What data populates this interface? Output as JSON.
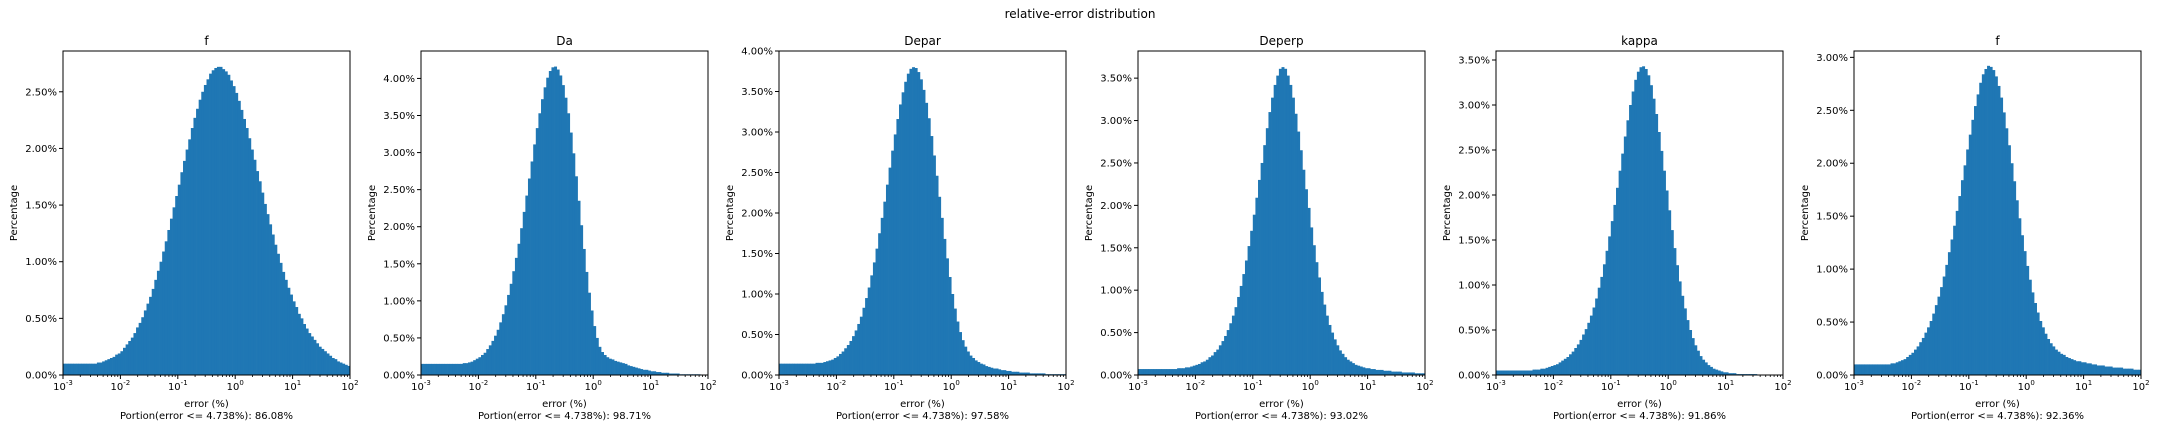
{
  "figure": {
    "suptitle": "relative-error distribution"
  },
  "chart_data": [
    {
      "type": "bar",
      "title": "f",
      "xlabel": "error (%)",
      "ylabel": "Percentage",
      "caption": "Portion(error <= 4.738%): 86.08%",
      "xscale": "log",
      "xlim": [
        0.001,
        100
      ],
      "ylim": [
        0,
        2.86
      ],
      "yticks": [
        "0.00%",
        "0.50%",
        "1.00%",
        "1.50%",
        "2.00%",
        "2.50%"
      ],
      "yticks_values": [
        0,
        0.5,
        1.0,
        1.5,
        2.0,
        2.5
      ],
      "xticks": [
        {
          "base": "10",
          "exp": "-3"
        },
        {
          "base": "10",
          "exp": "-2"
        },
        {
          "base": "10",
          "exp": "-1"
        },
        {
          "base": "10",
          "exp": "0"
        },
        {
          "base": "10",
          "exp": "1"
        },
        {
          "base": "10",
          "exp": "2"
        }
      ],
      "xticks_values": [
        0.001,
        0.01,
        0.1,
        1,
        10,
        100
      ],
      "color": "#1f77b4",
      "peak_x": 0.9,
      "peak_y": 2.72,
      "values": [
        0.1,
        0.1,
        0.1,
        0.1,
        0.1,
        0.1,
        0.1,
        0.1,
        0.1,
        0.1,
        0.1,
        0.1,
        0.1,
        0.11,
        0.11,
        0.12,
        0.13,
        0.14,
        0.15,
        0.16,
        0.18,
        0.19,
        0.21,
        0.24,
        0.27,
        0.3,
        0.33,
        0.37,
        0.42,
        0.46,
        0.51,
        0.57,
        0.63,
        0.69,
        0.76,
        0.84,
        0.92,
        1.0,
        1.09,
        1.18,
        1.28,
        1.38,
        1.48,
        1.58,
        1.68,
        1.79,
        1.89,
        1.99,
        2.08,
        2.18,
        2.27,
        2.35,
        2.43,
        2.5,
        2.56,
        2.61,
        2.66,
        2.69,
        2.71,
        2.72,
        2.72,
        2.7,
        2.68,
        2.65,
        2.6,
        2.55,
        2.49,
        2.42,
        2.34,
        2.26,
        2.18,
        2.09,
        1.99,
        1.9,
        1.8,
        1.71,
        1.61,
        1.51,
        1.42,
        1.33,
        1.24,
        1.15,
        1.07,
        0.99,
        0.91,
        0.84,
        0.77,
        0.71,
        0.65,
        0.6,
        0.54,
        0.5,
        0.45,
        0.41,
        0.37,
        0.34,
        0.31,
        0.28,
        0.25,
        0.23,
        0.21,
        0.19,
        0.17,
        0.15,
        0.14,
        0.12,
        0.11,
        0.1,
        0.09,
        0.08
      ]
    },
    {
      "type": "bar",
      "title": "Da",
      "xlabel": "error (%)",
      "ylabel": "Percentage",
      "caption": "Portion(error <= 4.738%): 98.71%",
      "xscale": "log",
      "xlim": [
        0.001,
        100
      ],
      "ylim": [
        0,
        4.37
      ],
      "yticks": [
        "0.00%",
        "0.50%",
        "1.00%",
        "1.50%",
        "2.00%",
        "2.50%",
        "3.00%",
        "3.50%",
        "4.00%"
      ],
      "yticks_values": [
        0,
        0.5,
        1.0,
        1.5,
        2.0,
        2.5,
        3.0,
        3.5,
        4.0
      ],
      "xticks": [
        {
          "base": "10",
          "exp": "-3"
        },
        {
          "base": "10",
          "exp": "-2"
        },
        {
          "base": "10",
          "exp": "-1"
        },
        {
          "base": "10",
          "exp": "0"
        },
        {
          "base": "10",
          "exp": "1"
        },
        {
          "base": "10",
          "exp": "2"
        }
      ],
      "xticks_values": [
        0.001,
        0.01,
        0.1,
        1,
        10,
        100
      ],
      "color": "#1f77b4",
      "peak_x": 0.4,
      "peak_y": 4.16,
      "values": [
        0.15,
        0.15,
        0.15,
        0.15,
        0.15,
        0.15,
        0.15,
        0.15,
        0.15,
        0.15,
        0.15,
        0.15,
        0.15,
        0.15,
        0.15,
        0.15,
        0.16,
        0.16,
        0.17,
        0.18,
        0.2,
        0.22,
        0.24,
        0.27,
        0.3,
        0.35,
        0.4,
        0.46,
        0.53,
        0.61,
        0.71,
        0.82,
        0.94,
        1.08,
        1.23,
        1.4,
        1.58,
        1.77,
        1.98,
        2.2,
        2.42,
        2.65,
        2.88,
        3.11,
        3.33,
        3.53,
        3.72,
        3.88,
        4.01,
        4.1,
        4.15,
        4.16,
        4.12,
        4.04,
        3.91,
        3.74,
        3.53,
        3.27,
        2.99,
        2.68,
        2.35,
        2.02,
        1.7,
        1.39,
        1.11,
        0.87,
        0.66,
        0.5,
        0.38,
        0.31,
        0.27,
        0.24,
        0.22,
        0.21,
        0.19,
        0.18,
        0.17,
        0.16,
        0.15,
        0.13,
        0.12,
        0.11,
        0.1,
        0.09,
        0.08,
        0.07,
        0.07,
        0.06,
        0.05,
        0.05,
        0.04,
        0.04,
        0.03,
        0.03,
        0.03,
        0.02,
        0.02,
        0.02,
        0.02,
        0.01,
        0.01,
        0.01,
        0.01,
        0.01,
        0.01,
        0.01,
        0.01,
        0,
        0,
        0
      ]
    },
    {
      "type": "bar",
      "title": "Depar",
      "xlabel": "error (%)",
      "ylabel": "Percentage",
      "caption": "Portion(error <= 4.738%): 97.58%",
      "xscale": "log",
      "xlim": [
        0.001,
        100
      ],
      "ylim": [
        0,
        4.0
      ],
      "yticks": [
        "0.00%",
        "0.50%",
        "1.00%",
        "1.50%",
        "2.00%",
        "2.50%",
        "3.00%",
        "3.50%",
        "4.00%"
      ],
      "yticks_values": [
        0,
        0.5,
        1.0,
        1.5,
        2.0,
        2.5,
        3.0,
        3.5,
        4.0
      ],
      "xticks": [
        {
          "base": "10",
          "exp": "-3"
        },
        {
          "base": "10",
          "exp": "-2"
        },
        {
          "base": "10",
          "exp": "-1"
        },
        {
          "base": "10",
          "exp": "0"
        },
        {
          "base": "10",
          "exp": "1"
        },
        {
          "base": "10",
          "exp": "2"
        }
      ],
      "xticks_values": [
        0.001,
        0.01,
        0.1,
        1,
        10,
        100
      ],
      "color": "#1f77b4",
      "peak_x": 0.45,
      "peak_y": 3.8,
      "values": [
        0.14,
        0.14,
        0.14,
        0.14,
        0.14,
        0.14,
        0.14,
        0.14,
        0.14,
        0.14,
        0.14,
        0.14,
        0.14,
        0.14,
        0.15,
        0.15,
        0.15,
        0.16,
        0.17,
        0.18,
        0.19,
        0.21,
        0.23,
        0.26,
        0.29,
        0.33,
        0.37,
        0.42,
        0.48,
        0.55,
        0.63,
        0.72,
        0.83,
        0.95,
        1.08,
        1.23,
        1.39,
        1.56,
        1.75,
        1.94,
        2.14,
        2.35,
        2.56,
        2.77,
        2.97,
        3.16,
        3.34,
        3.49,
        3.62,
        3.72,
        3.78,
        3.8,
        3.79,
        3.74,
        3.65,
        3.52,
        3.36,
        3.17,
        2.95,
        2.71,
        2.46,
        2.2,
        1.94,
        1.68,
        1.44,
        1.21,
        1.0,
        0.82,
        0.66,
        0.53,
        0.43,
        0.35,
        0.29,
        0.24,
        0.21,
        0.18,
        0.16,
        0.14,
        0.13,
        0.11,
        0.1,
        0.09,
        0.08,
        0.08,
        0.07,
        0.06,
        0.06,
        0.05,
        0.05,
        0.04,
        0.04,
        0.04,
        0.03,
        0.03,
        0.03,
        0.03,
        0.02,
        0.02,
        0.02,
        0.02,
        0.02,
        0.02,
        0.01,
        0.01,
        0.01,
        0.01,
        0.01,
        0.01,
        0.01,
        0.01
      ]
    },
    {
      "type": "bar",
      "title": "Deperp",
      "xlabel": "error (%)",
      "ylabel": "Percentage",
      "caption": "Portion(error <= 4.738%): 93.02%",
      "xscale": "log",
      "xlim": [
        0.001,
        100
      ],
      "ylim": [
        0,
        3.82
      ],
      "yticks": [
        "0.00%",
        "0.50%",
        "1.00%",
        "1.50%",
        "2.00%",
        "2.50%",
        "3.00%",
        "3.50%"
      ],
      "yticks_values": [
        0,
        0.5,
        1.0,
        1.5,
        2.0,
        2.5,
        3.0,
        3.5
      ],
      "xticks": [
        {
          "base": "10",
          "exp": "-3"
        },
        {
          "base": "10",
          "exp": "-2"
        },
        {
          "base": "10",
          "exp": "-1"
        },
        {
          "base": "10",
          "exp": "0"
        },
        {
          "base": "10",
          "exp": "1"
        },
        {
          "base": "10",
          "exp": "2"
        }
      ],
      "xticks_values": [
        0.001,
        0.01,
        0.1,
        1,
        10,
        100
      ],
      "color": "#1f77b4",
      "peak_x": 1.0,
      "peak_y": 3.63,
      "values": [
        0.07,
        0.07,
        0.07,
        0.07,
        0.07,
        0.07,
        0.07,
        0.07,
        0.07,
        0.07,
        0.07,
        0.07,
        0.07,
        0.07,
        0.07,
        0.08,
        0.08,
        0.08,
        0.09,
        0.09,
        0.1,
        0.11,
        0.12,
        0.13,
        0.15,
        0.16,
        0.18,
        0.21,
        0.23,
        0.27,
        0.3,
        0.35,
        0.4,
        0.46,
        0.53,
        0.61,
        0.7,
        0.8,
        0.92,
        1.05,
        1.19,
        1.35,
        1.52,
        1.7,
        1.89,
        2.09,
        2.3,
        2.5,
        2.71,
        2.91,
        3.1,
        3.27,
        3.42,
        3.53,
        3.61,
        3.63,
        3.61,
        3.53,
        3.42,
        3.27,
        3.08,
        2.87,
        2.65,
        2.42,
        2.19,
        1.97,
        1.74,
        1.53,
        1.33,
        1.15,
        0.98,
        0.83,
        0.7,
        0.59,
        0.5,
        0.42,
        0.35,
        0.29,
        0.25,
        0.21,
        0.18,
        0.16,
        0.14,
        0.12,
        0.11,
        0.1,
        0.09,
        0.08,
        0.08,
        0.07,
        0.07,
        0.06,
        0.06,
        0.06,
        0.05,
        0.05,
        0.05,
        0.04,
        0.04,
        0.04,
        0.04,
        0.03,
        0.03,
        0.03,
        0.03,
        0.03,
        0.02,
        0.02,
        0.02,
        0.02
      ]
    },
    {
      "type": "bar",
      "title": "kappa",
      "xlabel": "error (%)",
      "ylabel": "Percentage",
      "caption": "Portion(error <= 4.738%): 91.86%",
      "xscale": "log",
      "xlim": [
        0.001,
        100
      ],
      "ylim": [
        0,
        3.6
      ],
      "yticks": [
        "0.00%",
        "0.50%",
        "1.00%",
        "1.50%",
        "2.00%",
        "2.50%",
        "3.00%",
        "3.50%"
      ],
      "yticks_values": [
        0,
        0.5,
        1.0,
        1.5,
        2.0,
        2.5,
        3.0,
        3.5
      ],
      "xticks": [
        {
          "base": "10",
          "exp": "-3"
        },
        {
          "base": "10",
          "exp": "-2"
        },
        {
          "base": "10",
          "exp": "-1"
        },
        {
          "base": "10",
          "exp": "0"
        },
        {
          "base": "10",
          "exp": "1"
        },
        {
          "base": "10",
          "exp": "2"
        }
      ],
      "xticks_values": [
        0.001,
        0.01,
        0.1,
        1,
        10,
        100
      ],
      "color": "#1f77b4",
      "peak_x": 1.1,
      "peak_y": 3.43,
      "values": [
        0.05,
        0.05,
        0.05,
        0.05,
        0.05,
        0.05,
        0.05,
        0.05,
        0.05,
        0.05,
        0.05,
        0.05,
        0.05,
        0.05,
        0.06,
        0.06,
        0.06,
        0.07,
        0.07,
        0.08,
        0.09,
        0.1,
        0.11,
        0.12,
        0.14,
        0.16,
        0.18,
        0.2,
        0.23,
        0.26,
        0.3,
        0.34,
        0.39,
        0.45,
        0.51,
        0.58,
        0.66,
        0.75,
        0.85,
        0.97,
        1.09,
        1.23,
        1.38,
        1.54,
        1.71,
        1.89,
        2.08,
        2.27,
        2.46,
        2.65,
        2.83,
        3.0,
        3.15,
        3.28,
        3.37,
        3.42,
        3.43,
        3.4,
        3.33,
        3.22,
        3.07,
        2.9,
        2.7,
        2.49,
        2.27,
        2.05,
        1.83,
        1.61,
        1.41,
        1.22,
        1.04,
        0.88,
        0.74,
        0.61,
        0.5,
        0.41,
        0.33,
        0.27,
        0.21,
        0.17,
        0.14,
        0.11,
        0.09,
        0.07,
        0.06,
        0.05,
        0.04,
        0.03,
        0.03,
        0.02,
        0.02,
        0.02,
        0.01,
        0.01,
        0.01,
        0.01,
        0.01,
        0.01,
        0.01,
        0.01,
        0,
        0,
        0,
        0,
        0,
        0,
        0,
        0,
        0,
        0
      ]
    },
    {
      "type": "bar",
      "title": "f",
      "xlabel": "error (%)",
      "ylabel": "Percentage",
      "caption": "Portion(error <= 4.738%): 92.36%",
      "xscale": "log",
      "xlim": [
        0.001,
        100
      ],
      "ylim": [
        0,
        3.06
      ],
      "yticks": [
        "0.00%",
        "0.50%",
        "1.00%",
        "1.50%",
        "2.00%",
        "2.50%",
        "3.00%"
      ],
      "yticks_values": [
        0,
        0.5,
        1.0,
        1.5,
        2.0,
        2.5,
        3.0
      ],
      "xticks": [
        {
          "base": "10",
          "exp": "-3"
        },
        {
          "base": "10",
          "exp": "-2"
        },
        {
          "base": "10",
          "exp": "-1"
        },
        {
          "base": "10",
          "exp": "0"
        },
        {
          "base": "10",
          "exp": "1"
        },
        {
          "base": "10",
          "exp": "2"
        }
      ],
      "xticks_values": [
        0.001,
        0.01,
        0.1,
        1,
        10,
        100
      ],
      "color": "#1f77b4",
      "peak_x": 0.5,
      "peak_y": 2.92,
      "values": [
        0.1,
        0.1,
        0.1,
        0.1,
        0.1,
        0.1,
        0.1,
        0.1,
        0.1,
        0.1,
        0.1,
        0.1,
        0.1,
        0.1,
        0.11,
        0.11,
        0.12,
        0.13,
        0.14,
        0.15,
        0.17,
        0.19,
        0.21,
        0.24,
        0.27,
        0.31,
        0.35,
        0.4,
        0.45,
        0.51,
        0.58,
        0.66,
        0.74,
        0.83,
        0.93,
        1.04,
        1.16,
        1.28,
        1.41,
        1.55,
        1.69,
        1.84,
        1.98,
        2.13,
        2.27,
        2.41,
        2.54,
        2.65,
        2.76,
        2.84,
        2.89,
        2.92,
        2.91,
        2.88,
        2.82,
        2.73,
        2.62,
        2.48,
        2.33,
        2.17,
        2.0,
        1.83,
        1.65,
        1.48,
        1.32,
        1.17,
        1.03,
        0.9,
        0.78,
        0.68,
        0.59,
        0.51,
        0.45,
        0.39,
        0.34,
        0.3,
        0.27,
        0.24,
        0.22,
        0.2,
        0.19,
        0.17,
        0.16,
        0.15,
        0.14,
        0.13,
        0.13,
        0.12,
        0.12,
        0.11,
        0.11,
        0.1,
        0.1,
        0.09,
        0.09,
        0.09,
        0.08,
        0.08,
        0.08,
        0.07,
        0.07,
        0.07,
        0.07,
        0.06,
        0.06,
        0.06,
        0.06,
        0.05,
        0.05,
        0.05
      ]
    }
  ]
}
